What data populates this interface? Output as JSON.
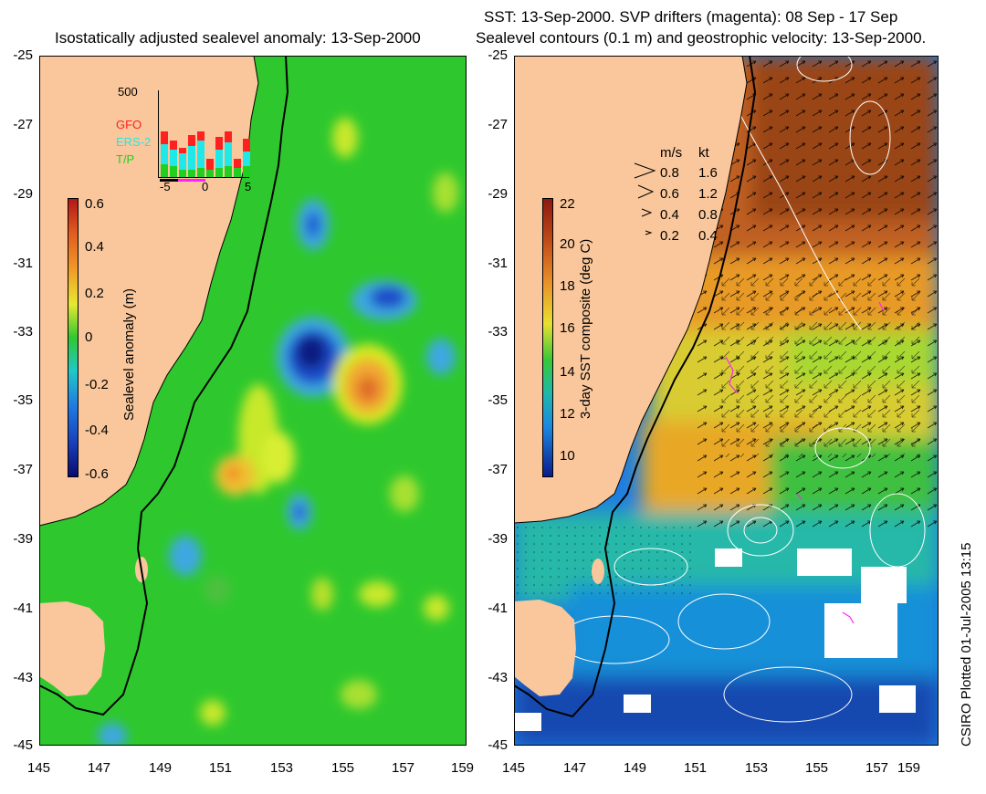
{
  "left_panel": {
    "title": "Isostatically adjusted sealevel anomaly: 13-Sep-2000",
    "colorbar": {
      "label": "Sealevel anomaly (m)",
      "ticks": [
        "0.6",
        "0.4",
        "0.2",
        "0",
        "-0.2",
        "-0.4",
        "-0.6"
      ]
    },
    "inset": {
      "ymax_label": "500",
      "legend": [
        "GFO",
        "ERS-2",
        "T/P"
      ],
      "legend_colors": [
        "#ff2020",
        "#20e8e8",
        "#20d020"
      ],
      "xticks": [
        "-5",
        "0",
        "5"
      ]
    }
  },
  "right_panel": {
    "title_line1": "SST: 13-Sep-2000. SVP drifters (magenta): 08 Sep - 17 Sep",
    "title_line2": "Sealevel contours (0.1 m) and geostrophic velocity: 13-Sep-2000.",
    "colorbar": {
      "label": "3-day SST composite (deg C)",
      "ticks": [
        "22",
        "20",
        "18",
        "16",
        "14",
        "12",
        "10"
      ]
    },
    "velocity_key": {
      "header_ms": "m/s",
      "header_kt": "kt",
      "rows": [
        {
          "ms": "0.8",
          "kt": "1.6"
        },
        {
          "ms": "0.6",
          "kt": "1.2"
        },
        {
          "ms": "0.4",
          "kt": "0.8"
        },
        {
          "ms": "0.2",
          "kt": "0.4"
        }
      ]
    }
  },
  "axes": {
    "lat_ticks": [
      "-25",
      "-27",
      "-29",
      "-31",
      "-33",
      "-35",
      "-37",
      "-39",
      "-41",
      "-43",
      "-45"
    ],
    "lon_ticks": [
      "145",
      "147",
      "149",
      "151",
      "153",
      "155",
      "157",
      "159"
    ]
  },
  "footer": {
    "credit": "CSIRO Plotted 01-Jul-2005 13:15"
  },
  "colors": {
    "land": "#f9c79b",
    "ocean_green": "#2ec82e",
    "coastline": "#000000"
  }
}
